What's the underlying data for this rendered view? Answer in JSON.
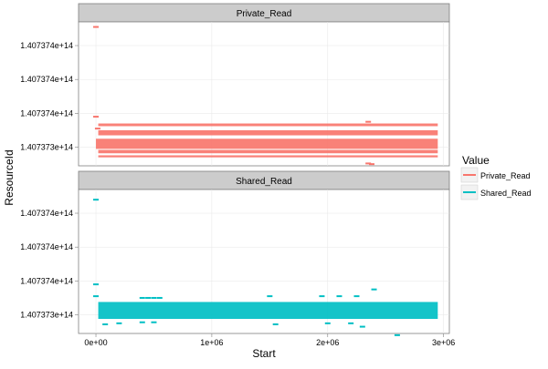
{
  "chart_data": {
    "type": "scatter",
    "facet_titles": [
      "Private_Read",
      "Shared_Read"
    ],
    "xlabel": "Start",
    "ylabel": "ResourceId",
    "x_ticks": [
      {
        "value": 0,
        "label": "0e+00"
      },
      {
        "value": 1000000,
        "label": "1e+06"
      },
      {
        "value": 2000000,
        "label": "2e+06"
      },
      {
        "value": 3000000,
        "label": "3e+06"
      }
    ],
    "xlim": [
      -150000,
      3050000
    ],
    "y_ticks": [
      {
        "value": 1,
        "label": "1.407373e+14"
      },
      {
        "value": 2,
        "label": "1.407374e+14"
      },
      {
        "value": 3,
        "label": "1.407374e+14"
      },
      {
        "value": 4,
        "label": "1.407374e+14"
      }
    ],
    "ylim": [
      0.45,
      4.7
    ],
    "grid": true,
    "legend": {
      "title": "Value",
      "position": "right",
      "items": [
        {
          "name": "Private_Read",
          "color": "#F8766D"
        },
        {
          "name": "Shared_Read",
          "color": "#00BFC4"
        }
      ]
    },
    "series": [
      {
        "name": "Private_Read",
        "color": "#F8766D",
        "bands": [
          {
            "x": [
              0,
              2950000
            ],
            "y": [
              0.95,
              1.25
            ]
          },
          {
            "x": [
              20000,
              2950000
            ],
            "y": [
              1.35,
              1.5
            ]
          },
          {
            "x": [
              20000,
              2950000
            ],
            "y": [
              0.82,
              0.92
            ]
          },
          {
            "x": [
              20000,
              2950000
            ],
            "y": [
              0.7,
              0.76
            ]
          },
          {
            "x": [
              20000,
              2950000
            ],
            "y": [
              1.62,
              1.7
            ]
          }
        ],
        "points": [
          {
            "x": 0,
            "y": 4.55
          },
          {
            "x": 0,
            "y": 1.9
          },
          {
            "x": 15000,
            "y": 1.55
          },
          {
            "x": 2350000,
            "y": 1.75
          },
          {
            "x": 2350000,
            "y": 0.52
          },
          {
            "x": 2380000,
            "y": 0.5
          }
        ]
      },
      {
        "name": "Shared_Read",
        "color": "#00BFC4",
        "bands": [
          {
            "x": [
              20000,
              2950000
            ],
            "y": [
              0.88,
              1.38
            ]
          }
        ],
        "points": [
          {
            "x": 0,
            "y": 4.4
          },
          {
            "x": 0,
            "y": 1.9
          },
          {
            "x": 0,
            "y": 1.55
          },
          {
            "x": 80000,
            "y": 0.72
          },
          {
            "x": 200000,
            "y": 0.75
          },
          {
            "x": 400000,
            "y": 1.5
          },
          {
            "x": 450000,
            "y": 1.5
          },
          {
            "x": 500000,
            "y": 1.5
          },
          {
            "x": 550000,
            "y": 1.5
          },
          {
            "x": 400000,
            "y": 0.78
          },
          {
            "x": 500000,
            "y": 0.78
          },
          {
            "x": 1500000,
            "y": 1.55
          },
          {
            "x": 1550000,
            "y": 0.72
          },
          {
            "x": 1950000,
            "y": 1.55
          },
          {
            "x": 2000000,
            "y": 0.75
          },
          {
            "x": 2100000,
            "y": 1.55
          },
          {
            "x": 2200000,
            "y": 0.75
          },
          {
            "x": 2250000,
            "y": 1.55
          },
          {
            "x": 2300000,
            "y": 0.65
          },
          {
            "x": 2400000,
            "y": 1.75
          },
          {
            "x": 2600000,
            "y": 0.4
          }
        ]
      }
    ]
  }
}
